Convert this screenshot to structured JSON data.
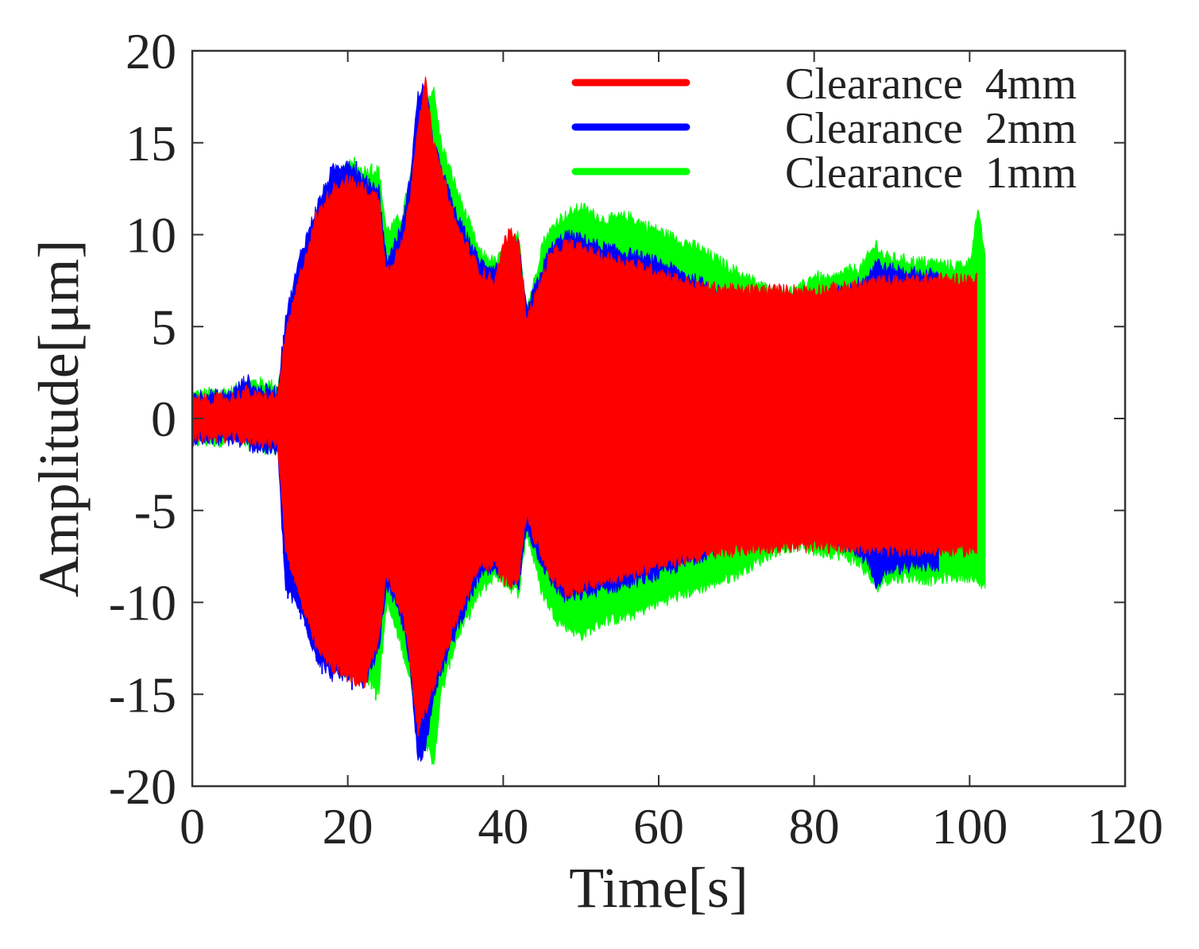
{
  "chart_data": {
    "type": "line",
    "title": "",
    "xlabel": "Time[s]",
    "ylabel": "Amplitude[μm]",
    "xlim": [
      0,
      120
    ],
    "ylim": [
      -20,
      20
    ],
    "xticks": [
      0,
      20,
      40,
      60,
      80,
      100,
      120
    ],
    "yticks": [
      20,
      15,
      10,
      5,
      0,
      -5,
      -10,
      -15,
      -20
    ],
    "xtick_labels": [
      "0",
      "20",
      "40",
      "60",
      "80",
      "100",
      "120"
    ],
    "ytick_labels": [
      "20",
      "15",
      "10",
      "5",
      "0",
      "-5",
      "-10",
      "-15",
      "-20"
    ],
    "grid": false,
    "legend_position": "top-right",
    "series": [
      {
        "name": "Clearance  1mm",
        "color": "#00ff00",
        "x": [
          0,
          5,
          8,
          11,
          12,
          14,
          16,
          18,
          20,
          22,
          24,
          25,
          27,
          29,
          30,
          31,
          32,
          34,
          37,
          39,
          41,
          42,
          43,
          44,
          45,
          47,
          50,
          53,
          56,
          60,
          65,
          70,
          75,
          78,
          80,
          82,
          84,
          86,
          88,
          89,
          92,
          95,
          98,
          100,
          101,
          102
        ],
        "upper": [
          1.3,
          1.5,
          2.0,
          1.8,
          3.5,
          8.5,
          10.5,
          12.5,
          13.8,
          13.5,
          13.5,
          10.2,
          11.0,
          15.0,
          17.0,
          18.0,
          15.0,
          12.5,
          9.0,
          8.5,
          9.5,
          10.0,
          6.0,
          7.5,
          9.5,
          10.8,
          11.5,
          10.8,
          11.0,
          10.2,
          9.3,
          8.0,
          6.8,
          7.0,
          7.8,
          7.5,
          8.0,
          8.2,
          9.5,
          8.8,
          8.6,
          8.5,
          8.3,
          8.5,
          11.3,
          9.0
        ],
        "lower": [
          -1.3,
          -1.2,
          -1.5,
          -1.8,
          -4.0,
          -8.5,
          -11.0,
          -13.0,
          -14.0,
          -14.0,
          -14.8,
          -10.0,
          -12.5,
          -16.0,
          -17.5,
          -19.0,
          -15.0,
          -12.0,
          -9.5,
          -8.5,
          -9.2,
          -9.5,
          -6.2,
          -7.8,
          -9.5,
          -11.0,
          -11.8,
          -11.0,
          -10.8,
          -10.0,
          -9.3,
          -8.5,
          -7.2,
          -6.9,
          -7.2,
          -7.3,
          -7.5,
          -8.0,
          -9.2,
          -8.8,
          -8.6,
          -8.8,
          -8.6,
          -8.6,
          -9.0,
          -9.0
        ]
      },
      {
        "name": "Clearance  2mm",
        "color": "#0000ff",
        "x": [
          0,
          5,
          7,
          8,
          11,
          12,
          14,
          16,
          18,
          20,
          22,
          24,
          25,
          27,
          28,
          29,
          30,
          31,
          34,
          37,
          39,
          41,
          42,
          43,
          44,
          46,
          48,
          50,
          53,
          56,
          60,
          65,
          70,
          75,
          78,
          80,
          82,
          85,
          87,
          88,
          89,
          92,
          96
        ],
        "upper": [
          1.3,
          1.3,
          2.2,
          1.6,
          1.5,
          5.5,
          9.0,
          11.5,
          13.5,
          14.0,
          13.0,
          12.5,
          8.5,
          10.5,
          13.0,
          17.5,
          18.2,
          15.0,
          11.0,
          8.5,
          8.2,
          9.0,
          9.5,
          5.8,
          7.0,
          9.2,
          10.0,
          9.8,
          9.3,
          9.0,
          8.5,
          7.5,
          6.5,
          5.8,
          5.9,
          6.2,
          6.8,
          7.2,
          7.8,
          8.6,
          8.2,
          8.0,
          7.8
        ],
        "lower": [
          -1.2,
          -1.2,
          -1.4,
          -1.6,
          -1.8,
          -9.3,
          -10.5,
          -13.0,
          -14.0,
          -14.0,
          -14.5,
          -12.5,
          -9.0,
          -11.0,
          -13.5,
          -18.5,
          -18.0,
          -15.0,
          -11.5,
          -8.5,
          -8.3,
          -8.8,
          -9.2,
          -5.8,
          -7.0,
          -8.8,
          -9.8,
          -9.6,
          -9.3,
          -9.0,
          -8.5,
          -7.6,
          -6.5,
          -5.5,
          -5.7,
          -6.1,
          -6.6,
          -7.2,
          -7.7,
          -9.5,
          -8.3,
          -8.1,
          -8.0
        ]
      },
      {
        "name": "Clearance  4mm",
        "color": "#ff0000",
        "x": [
          0,
          5,
          7,
          8,
          11,
          12,
          14,
          16,
          18,
          20,
          22,
          24,
          25,
          27,
          28,
          29,
          30,
          31,
          34,
          37,
          39,
          40,
          41,
          42,
          43,
          44,
          46,
          48,
          50,
          53,
          56,
          60,
          65,
          70,
          75,
          80,
          85,
          88,
          90,
          95,
          100,
          101
        ],
        "upper": [
          1.0,
          1.1,
          1.5,
          1.2,
          1.2,
          4.5,
          8.0,
          11.0,
          12.5,
          13.0,
          12.5,
          12.0,
          8.0,
          9.5,
          12.0,
          16.0,
          18.3,
          15.0,
          10.5,
          8.0,
          7.5,
          9.5,
          10.2,
          9.5,
          5.5,
          6.5,
          8.8,
          9.5,
          9.3,
          8.8,
          8.5,
          8.0,
          7.2,
          7.0,
          7.0,
          7.0,
          7.2,
          7.5,
          7.5,
          7.6,
          7.6,
          7.6
        ],
        "lower": [
          -1.0,
          -1.0,
          -1.2,
          -1.2,
          -1.4,
          -7.0,
          -10.0,
          -12.5,
          -13.5,
          -14.0,
          -14.5,
          -12.0,
          -8.5,
          -10.5,
          -13.0,
          -17.0,
          -16.0,
          -14.5,
          -11.0,
          -8.0,
          -8.0,
          -8.8,
          -9.0,
          -8.5,
          -5.2,
          -6.5,
          -8.5,
          -9.5,
          -9.2,
          -8.8,
          -8.5,
          -8.0,
          -7.5,
          -7.2,
          -7.0,
          -7.0,
          -7.0,
          -7.2,
          -7.2,
          -7.2,
          -7.2,
          -7.2
        ]
      }
    ],
    "legend_order": [
      "Clearance  4mm",
      "Clearance  2mm",
      "Clearance  1mm"
    ]
  }
}
